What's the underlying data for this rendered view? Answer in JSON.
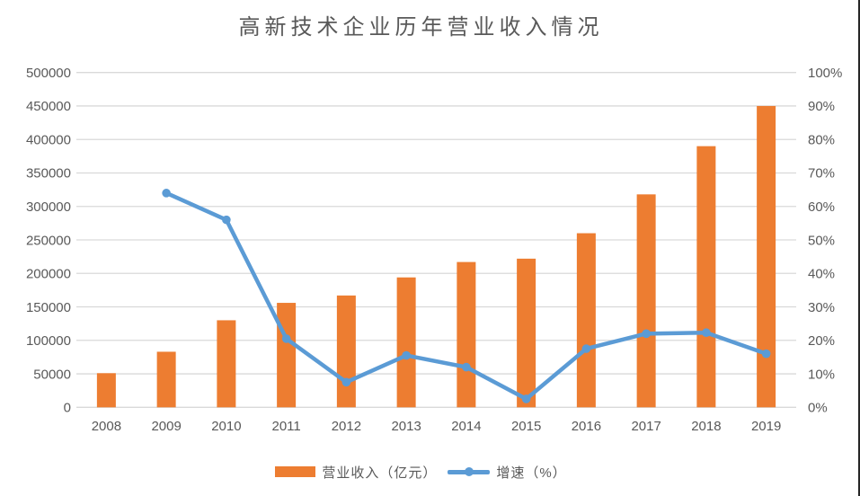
{
  "chart_data": {
    "type": "combo-bar-line",
    "title": "高新技术企业历年营业收入情况",
    "categories": [
      "2008",
      "2009",
      "2010",
      "2011",
      "2012",
      "2013",
      "2014",
      "2015",
      "2016",
      "2017",
      "2018",
      "2019"
    ],
    "series": [
      {
        "name": "营业收入（亿元）",
        "type": "bar",
        "axis": "left",
        "color": "#ED7D31",
        "values": [
          51000,
          83000,
          130000,
          156000,
          167000,
          194000,
          217000,
          222000,
          260000,
          318000,
          390000,
          450000
        ]
      },
      {
        "name": "增速（%）",
        "type": "line",
        "axis": "right",
        "color": "#5B9BD5",
        "values": [
          null,
          64,
          56,
          20.5,
          7.5,
          15.5,
          12,
          2.5,
          17.5,
          22,
          22.3,
          16
        ]
      }
    ],
    "left_axis": {
      "min": 0,
      "max": 500000,
      "step": 50000,
      "tick_labels": [
        "0",
        "50000",
        "100000",
        "150000",
        "200000",
        "250000",
        "300000",
        "350000",
        "400000",
        "450000",
        "500000"
      ]
    },
    "right_axis": {
      "min": 0,
      "max": 100,
      "step": 10,
      "tick_labels": [
        "0%",
        "10%",
        "20%",
        "30%",
        "40%",
        "50%",
        "60%",
        "70%",
        "80%",
        "90%",
        "100%"
      ]
    },
    "grid": true,
    "gridline_color": "#D9D9D9",
    "text_color": "#595959",
    "legend_position": "bottom"
  },
  "window": {
    "edge_color": "#262626"
  }
}
